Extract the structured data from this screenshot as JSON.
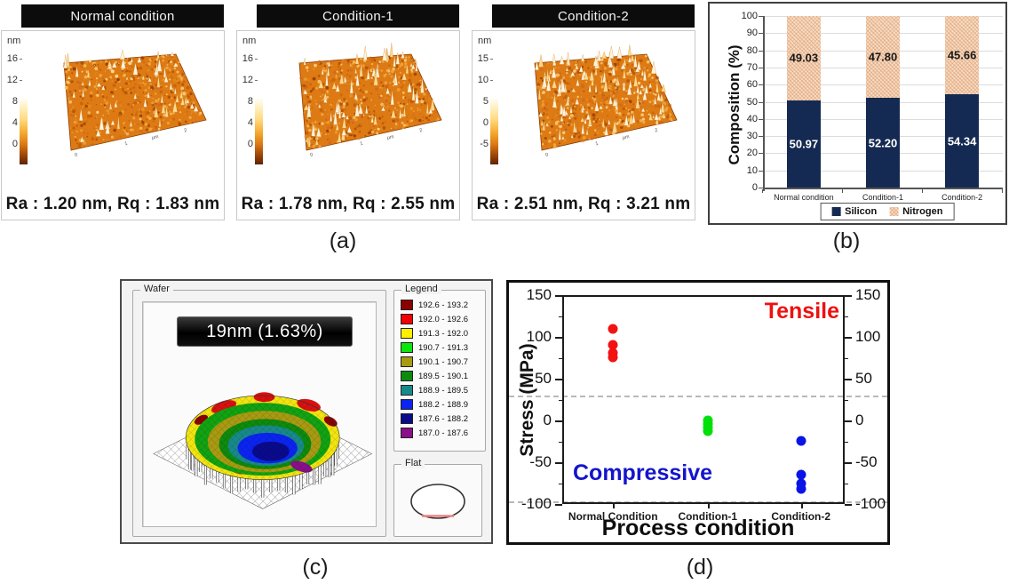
{
  "figure": {
    "panel_labels": {
      "a": "(a)",
      "b": "(b)",
      "c": "(c)",
      "d": "(d)"
    }
  },
  "afm_panels": [
    {
      "title": "Normal condition",
      "unit_label": "nm",
      "z_ticks": [
        "16",
        "12",
        "8",
        "4",
        "0"
      ],
      "xy_axis_labels": [
        "0",
        "1",
        "µm",
        "2"
      ],
      "roughness_text": "Ra : 1.20 nm, Rq : 1.83 nm"
    },
    {
      "title": "Condition-1",
      "unit_label": "nm",
      "z_ticks": [
        "16",
        "12",
        "8",
        "4",
        "0"
      ],
      "xy_axis_labels": [
        "0",
        "1",
        "µm",
        "2"
      ],
      "roughness_text": "Ra : 1.78 nm, Rq : 2.55 nm"
    },
    {
      "title": "Condition-2",
      "unit_label": "nm",
      "z_ticks": [
        "15",
        "10",
        "5",
        "0",
        "-5"
      ],
      "xy_axis_labels": [
        "0",
        "1",
        "µm",
        "2"
      ],
      "roughness_text": "Ra : 2.51 nm, Rq : 3.21 nm"
    }
  ],
  "chart_data": [
    {
      "id": "composition",
      "type": "bar",
      "stacked": true,
      "categories": [
        "Normal condition",
        "Condition-1",
        "Condition-2"
      ],
      "series": [
        {
          "name": "Silicon",
          "values": [
            50.97,
            52.2,
            54.34
          ],
          "color": "#152A52",
          "label_color": "#FFFFFF",
          "hatch": false
        },
        {
          "name": "Nitrogen",
          "values": [
            49.03,
            47.8,
            45.66
          ],
          "color": "#F7DCC5",
          "label_color": "#1A1A1A",
          "hatch": true
        }
      ],
      "value_labels": {
        "silicon": [
          "50.97",
          "52.20",
          "54.34"
        ],
        "nitrogen": [
          "49.03",
          "47.80",
          "45.66"
        ]
      },
      "ylabel": "Composition (%)",
      "ylim": [
        0,
        100
      ],
      "ytick_step": 10,
      "grid": true,
      "legend_position": "bottom"
    },
    {
      "id": "stress",
      "type": "scatter",
      "categories": [
        "Normal Condition",
        "Condition-1",
        "Condition-2"
      ],
      "series": [
        {
          "category": "Normal Condition",
          "color": "#F21212",
          "values": [
            110,
            90,
            81,
            76
          ]
        },
        {
          "category": "Condition-1",
          "color": "#00E10A",
          "values": [
            0,
            -4,
            -9,
            -13
          ]
        },
        {
          "category": "Condition-2",
          "color": "#0A14E6",
          "values": [
            -24,
            -65,
            -76,
            -82
          ]
        }
      ],
      "xlabel": "Process condition",
      "ylabel": "Stress (MPa)",
      "ylim": [
        -100,
        150
      ],
      "ytick_step": 50,
      "yticks": [
        150,
        100,
        50,
        0,
        -50,
        -100
      ],
      "annotations": [
        {
          "text": "Tensile",
          "color": "#EE1111",
          "position": "top-right"
        },
        {
          "text": "Compressive",
          "color": "#1414CC",
          "position": "bottom-left"
        }
      ],
      "reference_lines_y": [
        30,
        -97
      ],
      "legend_position": "none"
    }
  ],
  "wafer_panel": {
    "group_titles": {
      "wafer": "Wafer",
      "legend": "Legend",
      "flat": "Flat"
    },
    "banner_text": "19nm (1.63%)",
    "legend_entries": [
      {
        "range": "192.6 - 193.2",
        "color": "#8B0000"
      },
      {
        "range": "192.0 - 192.6",
        "color": "#F00000"
      },
      {
        "range": "191.3 - 192.0",
        "color": "#FFF000"
      },
      {
        "range": "190.7 - 191.3",
        "color": "#0CE60C"
      },
      {
        "range": "190.1 - 190.7",
        "color": "#A89A12"
      },
      {
        "range": "189.5 - 190.1",
        "color": "#0E8A0E"
      },
      {
        "range": "188.9 - 189.5",
        "color": "#18898B"
      },
      {
        "range": "188.2 - 188.9",
        "color": "#0B24F0"
      },
      {
        "range": "187.6 - 188.2",
        "color": "#0A0A8C"
      },
      {
        "range": "187.0 - 187.6",
        "color": "#8A0F8A"
      }
    ]
  }
}
